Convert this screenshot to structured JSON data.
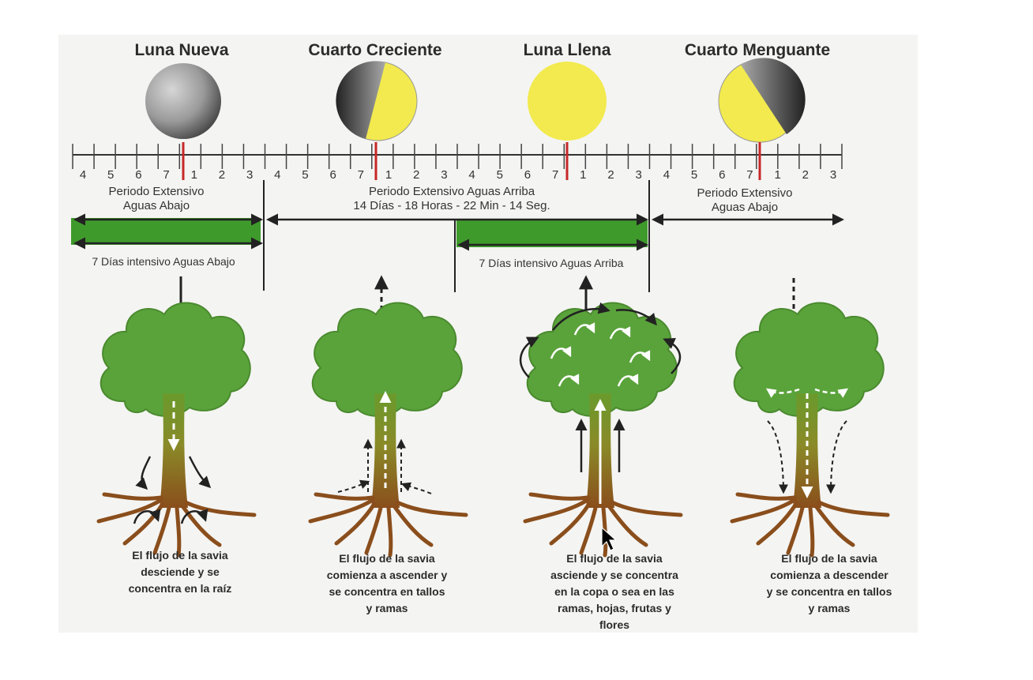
{
  "phases": [
    {
      "title": "Luna Nueva"
    },
    {
      "title": "Cuarto Creciente"
    },
    {
      "title": "Luna Llena"
    },
    {
      "title": "Cuarto Menguante"
    }
  ],
  "ticks": [
    "4",
    "5",
    "6",
    "7",
    "1",
    "2",
    "3",
    "4",
    "5",
    "6",
    "7",
    "1",
    "2",
    "3",
    "4",
    "5",
    "6",
    "7",
    "1",
    "2",
    "3",
    "4",
    "5",
    "6",
    "7",
    "1",
    "2",
    "3"
  ],
  "periods": {
    "left": {
      "line1": "Periodo Extensivo",
      "line2": "Aguas Abajo"
    },
    "middle": {
      "line1": "Periodo Extensivo Aguas Arriba",
      "line2": "14 Días - 18 Horas - 22 Min - 14 Seg."
    },
    "right": {
      "line1": "Periodo Extensivo",
      "line2": "Aguas Abajo"
    }
  },
  "intensive": {
    "down": "7 Días intensivo Aguas Abajo",
    "up": "7 Días intensivo Aguas Arriba"
  },
  "captions": [
    [
      "El flujo de la savia",
      "desciende y se",
      "concentra en la raíz"
    ],
    [
      "El flujo de la savia",
      "comienza a ascender y",
      "se concentra en tallos",
      "y ramas"
    ],
    [
      "El flujo de la savia",
      "asciende y se concentra",
      "en la copa o sea en las",
      "ramas, hojas, frutas y",
      "flores"
    ],
    [
      "El flujo de la savia",
      "comienza a descender",
      "y se concentra en tallos",
      "y ramas"
    ]
  ],
  "colors": {
    "moon_yellow": "#f2ea4e",
    "moon_dark": "#2a2a2a",
    "moon_gray": "#8a8a8a",
    "marker_red": "#c62828",
    "band_green": "#3f9a2c",
    "foliage_green": "#5aa33b",
    "trunk_brown": "#8a4e1c"
  }
}
